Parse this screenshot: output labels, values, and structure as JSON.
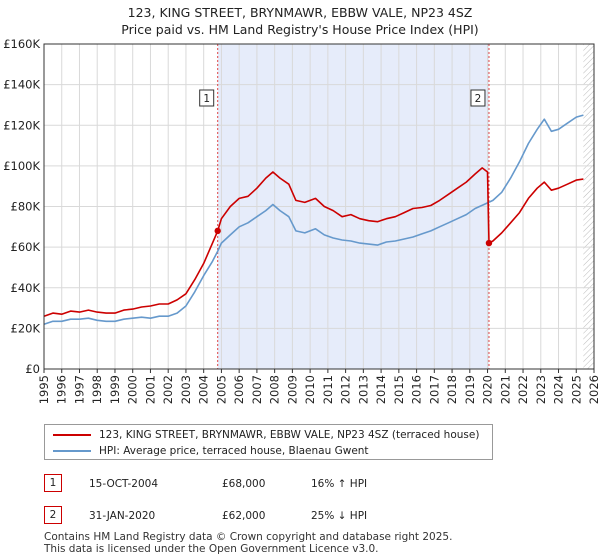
{
  "header": {
    "title": "123, KING STREET, BRYNMAWR, EBBW VALE, NP23 4SZ",
    "subtitle": "Price paid vs. HM Land Registry's House Price Index (HPI)"
  },
  "colors": {
    "property": "#cc0000",
    "hpi": "#6699cc",
    "shade": "#e6ecfa",
    "grid": "#d9d9d9",
    "hatch": "#bbbbbb"
  },
  "chart_data": {
    "type": "line",
    "title": "Price paid vs. HM Land Registry's House Price Index (HPI)",
    "xlabel": "",
    "ylabel": "",
    "xlim": [
      1995,
      2026
    ],
    "ylim": [
      0,
      160000
    ],
    "yticks": [
      0,
      20000,
      40000,
      60000,
      80000,
      100000,
      120000,
      140000,
      160000
    ],
    "ytick_labels": [
      "£0",
      "£20K",
      "£40K",
      "£60K",
      "£80K",
      "£100K",
      "£120K",
      "£140K",
      "£160K"
    ],
    "xticks": [
      1995,
      1996,
      1997,
      1998,
      1999,
      2000,
      2001,
      2002,
      2003,
      2004,
      2005,
      2006,
      2007,
      2008,
      2009,
      2010,
      2011,
      2012,
      2013,
      2014,
      2015,
      2016,
      2017,
      2018,
      2019,
      2020,
      2021,
      2022,
      2023,
      2024,
      2025,
      2026
    ],
    "xtick_labels": [
      "1995",
      "1996",
      "1997",
      "1998",
      "1999",
      "2000",
      "2001",
      "2002",
      "2003",
      "2004",
      "2005",
      "2006",
      "2007",
      "2008",
      "2009",
      "2010",
      "2011",
      "2012",
      "2013",
      "2014",
      "2015",
      "2016",
      "2017",
      "2018",
      "2019",
      "2020",
      "2021",
      "2022",
      "2023",
      "2024",
      "2025",
      "2026"
    ],
    "shaded_period": [
      2004.79,
      2020.08
    ],
    "future_from": 2025.4,
    "markers": [
      {
        "label": "1",
        "x": 2004.79,
        "y": 68000
      },
      {
        "label": "2",
        "x": 2020.08,
        "y": 62000
      }
    ],
    "series": [
      {
        "name": "123, KING STREET, BRYNMAWR, EBBW VALE, NP23 4SZ (terraced house)",
        "points": [
          [
            1995.0,
            26000
          ],
          [
            1995.5,
            27500
          ],
          [
            1996.0,
            27000
          ],
          [
            1996.5,
            28500
          ],
          [
            1997.0,
            28000
          ],
          [
            1997.5,
            29000
          ],
          [
            1998.0,
            28000
          ],
          [
            1998.5,
            27500
          ],
          [
            1999.0,
            27500
          ],
          [
            1999.5,
            29000
          ],
          [
            2000.0,
            29500
          ],
          [
            2000.5,
            30500
          ],
          [
            2001.0,
            31000
          ],
          [
            2001.5,
            32000
          ],
          [
            2002.0,
            32000
          ],
          [
            2002.5,
            34000
          ],
          [
            2003.0,
            37000
          ],
          [
            2003.5,
            44000
          ],
          [
            2004.0,
            52000
          ],
          [
            2004.5,
            62000
          ],
          [
            2004.79,
            68000
          ],
          [
            2005.0,
            74000
          ],
          [
            2005.5,
            80000
          ],
          [
            2006.0,
            84000
          ],
          [
            2006.5,
            85000
          ],
          [
            2007.0,
            89000
          ],
          [
            2007.5,
            94000
          ],
          [
            2007.9,
            97000
          ],
          [
            2008.3,
            94000
          ],
          [
            2008.8,
            91000
          ],
          [
            2009.2,
            83000
          ],
          [
            2009.7,
            82000
          ],
          [
            2010.3,
            84000
          ],
          [
            2010.8,
            80000
          ],
          [
            2011.3,
            78000
          ],
          [
            2011.8,
            75000
          ],
          [
            2012.3,
            76000
          ],
          [
            2012.8,
            74000
          ],
          [
            2013.3,
            73000
          ],
          [
            2013.8,
            72500
          ],
          [
            2014.3,
            74000
          ],
          [
            2014.8,
            75000
          ],
          [
            2015.3,
            77000
          ],
          [
            2015.8,
            79000
          ],
          [
            2016.3,
            79500
          ],
          [
            2016.8,
            80500
          ],
          [
            2017.3,
            83000
          ],
          [
            2017.8,
            86000
          ],
          [
            2018.3,
            89000
          ],
          [
            2018.8,
            92000
          ],
          [
            2019.3,
            96000
          ],
          [
            2019.7,
            99000
          ],
          [
            2020.0,
            97000
          ],
          [
            2020.08,
            62000
          ],
          [
            2020.3,
            63000
          ],
          [
            2020.8,
            67000
          ],
          [
            2021.3,
            72000
          ],
          [
            2021.8,
            77000
          ],
          [
            2022.3,
            84000
          ],
          [
            2022.8,
            89000
          ],
          [
            2023.2,
            92000
          ],
          [
            2023.6,
            88000
          ],
          [
            2024.0,
            89000
          ],
          [
            2024.5,
            91000
          ],
          [
            2025.0,
            93000
          ],
          [
            2025.4,
            93500
          ]
        ]
      },
      {
        "name": "HPI: Average price, terraced house, Blaenau Gwent",
        "points": [
          [
            1995.0,
            22000
          ],
          [
            1995.5,
            23500
          ],
          [
            1996.0,
            23500
          ],
          [
            1996.5,
            24500
          ],
          [
            1997.0,
            24500
          ],
          [
            1997.5,
            25000
          ],
          [
            1998.0,
            24000
          ],
          [
            1998.5,
            23500
          ],
          [
            1999.0,
            23500
          ],
          [
            1999.5,
            24500
          ],
          [
            2000.0,
            25000
          ],
          [
            2000.5,
            25500
          ],
          [
            2001.0,
            25000
          ],
          [
            2001.5,
            26000
          ],
          [
            2002.0,
            26000
          ],
          [
            2002.5,
            27500
          ],
          [
            2003.0,
            31000
          ],
          [
            2003.5,
            38000
          ],
          [
            2004.0,
            46000
          ],
          [
            2004.5,
            53000
          ],
          [
            2004.79,
            58000
          ],
          [
            2005.0,
            62000
          ],
          [
            2005.5,
            66000
          ],
          [
            2006.0,
            70000
          ],
          [
            2006.5,
            72000
          ],
          [
            2007.0,
            75000
          ],
          [
            2007.5,
            78000
          ],
          [
            2007.9,
            81000
          ],
          [
            2008.3,
            78000
          ],
          [
            2008.8,
            75000
          ],
          [
            2009.2,
            68000
          ],
          [
            2009.7,
            67000
          ],
          [
            2010.3,
            69000
          ],
          [
            2010.8,
            66000
          ],
          [
            2011.3,
            64500
          ],
          [
            2011.8,
            63500
          ],
          [
            2012.3,
            63000
          ],
          [
            2012.8,
            62000
          ],
          [
            2013.3,
            61500
          ],
          [
            2013.8,
            61000
          ],
          [
            2014.3,
            62500
          ],
          [
            2014.8,
            63000
          ],
          [
            2015.3,
            64000
          ],
          [
            2015.8,
            65000
          ],
          [
            2016.3,
            66500
          ],
          [
            2016.8,
            68000
          ],
          [
            2017.3,
            70000
          ],
          [
            2017.8,
            72000
          ],
          [
            2018.3,
            74000
          ],
          [
            2018.8,
            76000
          ],
          [
            2019.3,
            79000
          ],
          [
            2019.8,
            81000
          ],
          [
            2020.3,
            83000
          ],
          [
            2020.8,
            87000
          ],
          [
            2021.3,
            94000
          ],
          [
            2021.8,
            102000
          ],
          [
            2022.3,
            111000
          ],
          [
            2022.8,
            118000
          ],
          [
            2023.2,
            123000
          ],
          [
            2023.6,
            117000
          ],
          [
            2024.0,
            118000
          ],
          [
            2024.5,
            121000
          ],
          [
            2025.0,
            124000
          ],
          [
            2025.4,
            125000
          ]
        ]
      }
    ]
  },
  "legend": {
    "property_label": "123, KING STREET, BRYNMAWR, EBBW VALE, NP23 4SZ (terraced house)",
    "hpi_label": "HPI: Average price, terraced house, Blaenau Gwent"
  },
  "annotations": [
    {
      "num": "1",
      "date": "15-OCT-2004",
      "price": "£68,000",
      "hpi": "16% ↑ HPI"
    },
    {
      "num": "2",
      "date": "31-JAN-2020",
      "price": "£62,000",
      "hpi": "25% ↓ HPI"
    }
  ],
  "footer": {
    "line1": "Contains HM Land Registry data © Crown copyright and database right 2025.",
    "line2": "This data is licensed under the Open Government Licence v3.0."
  }
}
